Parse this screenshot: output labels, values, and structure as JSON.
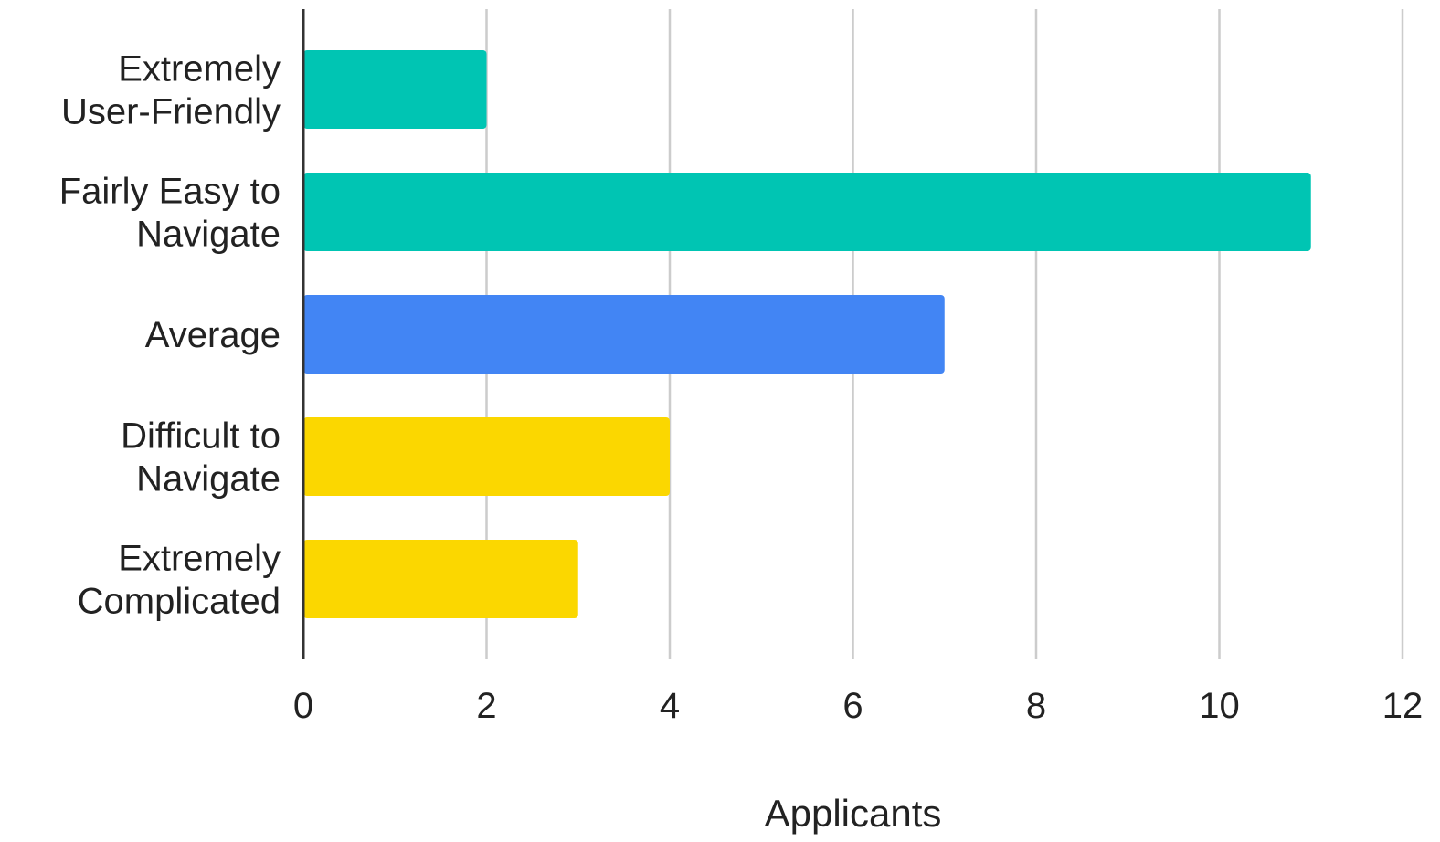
{
  "chart_data": {
    "type": "bar",
    "orientation": "horizontal",
    "categories": [
      [
        "Extremely",
        "User-Friendly"
      ],
      [
        "Fairly Easy to",
        "Navigate"
      ],
      [
        "Average"
      ],
      [
        "Difficult to",
        "Navigate"
      ],
      [
        "Extremely",
        "Complicated"
      ]
    ],
    "values": [
      2,
      11,
      7,
      4,
      3
    ],
    "bar_colors": [
      "#00c5b3",
      "#00c5b3",
      "#4285f4",
      "#fbd700",
      "#fbd700"
    ],
    "title": "",
    "xlabel": "Applicants",
    "ylabel": "",
    "xlim": [
      0,
      12
    ],
    "x_ticks": [
      0,
      2,
      4,
      6,
      8,
      10,
      12
    ],
    "grid": "vertical",
    "grid_color": "#cccccc",
    "axis_color": "#333333",
    "legend": "none"
  }
}
